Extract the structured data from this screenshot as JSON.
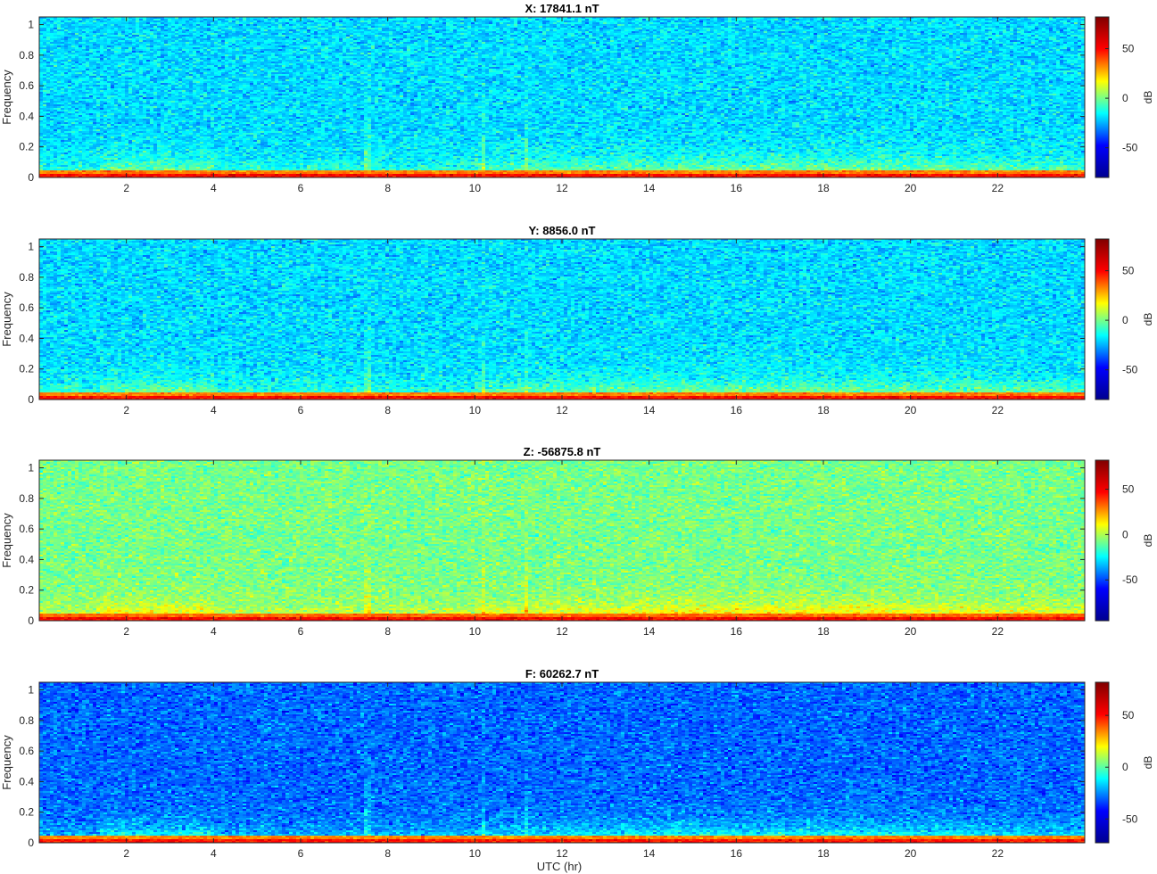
{
  "figure": {
    "xlabel": "UTC (hr)",
    "colormap": "jet",
    "colormap_stops": [
      "#00008f",
      "#0000ff",
      "#00ffff",
      "#ffff00",
      "#ff0000",
      "#800000"
    ]
  },
  "chart_data": [
    {
      "type": "heatmap",
      "title": "X: 17841.1 nT",
      "xlabel": "",
      "ylabel": "Frequency",
      "xlim": [
        0,
        24
      ],
      "ylim": [
        0,
        1.05
      ],
      "xticks": [
        "2",
        "4",
        "6",
        "8",
        "10",
        "12",
        "14",
        "16",
        "18",
        "20",
        "22"
      ],
      "yticks": [
        "0",
        "0.2",
        "0.4",
        "0.6",
        "0.8",
        "1"
      ],
      "colorbar": {
        "label": "dB",
        "clim": [
          -80,
          82
        ],
        "ticks": [
          "50",
          "0",
          "-50"
        ]
      },
      "background_level_db": -25
    },
    {
      "type": "heatmap",
      "title": "Y: 8856.0 nT",
      "xlabel": "",
      "ylabel": "Frequency",
      "xlim": [
        0,
        24
      ],
      "ylim": [
        0,
        1.05
      ],
      "xticks": [
        "2",
        "4",
        "6",
        "8",
        "10",
        "12",
        "14",
        "16",
        "18",
        "20",
        "22"
      ],
      "yticks": [
        "0",
        "0.2",
        "0.4",
        "0.6",
        "0.8",
        "1"
      ],
      "colorbar": {
        "label": "dB",
        "clim": [
          -80,
          82
        ],
        "ticks": [
          "50",
          "0",
          "-50"
        ]
      },
      "background_level_db": -25
    },
    {
      "type": "heatmap",
      "title": "Z: -56875.8 nT",
      "xlabel": "",
      "ylabel": "Frequency",
      "xlim": [
        0,
        24
      ],
      "ylim": [
        0,
        1.05
      ],
      "xticks": [
        "2",
        "4",
        "6",
        "8",
        "10",
        "12",
        "14",
        "16",
        "18",
        "20",
        "22"
      ],
      "yticks": [
        "0",
        "0.2",
        "0.4",
        "0.6",
        "0.8",
        "1"
      ],
      "colorbar": {
        "label": "dB",
        "clim": [
          -95,
          82
        ],
        "ticks": [
          "50",
          "0",
          "-50"
        ]
      },
      "background_level_db": -8
    },
    {
      "type": "heatmap",
      "title": "F: 60262.7 nT",
      "xlabel": "UTC (hr)",
      "ylabel": "Frequency",
      "xlim": [
        0,
        24
      ],
      "ylim": [
        0,
        1.05
      ],
      "xticks": [
        "2",
        "4",
        "6",
        "8",
        "10",
        "12",
        "14",
        "16",
        "18",
        "20",
        "22"
      ],
      "yticks": [
        "0",
        "0.2",
        "0.4",
        "0.6",
        "0.8",
        "1"
      ],
      "colorbar": {
        "label": "dB",
        "clim": [
          -73,
          82
        ],
        "ticks": [
          "50",
          "0",
          "-50"
        ]
      },
      "background_level_db": -38
    }
  ]
}
